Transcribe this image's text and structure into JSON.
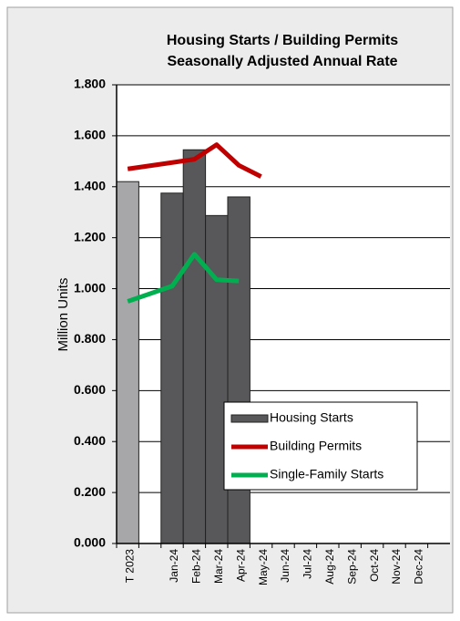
{
  "chart_data": {
    "type": "bar_line",
    "title": [
      "Housing Starts / Building Permits",
      "Seasonally Adjusted Annual Rate"
    ],
    "y_label": "Million Units",
    "categories": [
      "T 2023",
      null,
      "Jan-24",
      "Feb-24",
      "Mar-24",
      "Apr-24",
      "May-24",
      "Jun-24",
      "Jul-24",
      "Aug-24",
      "Sep-24",
      "Oct-24",
      "Nov-24",
      "Dec-24",
      null
    ],
    "series": [
      {
        "name": "Housing Starts",
        "type": "bar",
        "color": "#58585a",
        "point_colors": {
          "0": "#a7a7aa"
        },
        "values": [
          1.42,
          null,
          1.375,
          1.545,
          1.287,
          1.36,
          null,
          null,
          null,
          null,
          null,
          null,
          null,
          null,
          null
        ]
      },
      {
        "name": "Building Permits",
        "type": "line",
        "color": "#c00000",
        "values": [
          1.47,
          null,
          1.495,
          1.508,
          1.565,
          1.484,
          1.44,
          null,
          null,
          null,
          null,
          null,
          null,
          null,
          null
        ]
      },
      {
        "name": "Single-Family Starts",
        "type": "line",
        "color": "#00b050",
        "values": [
          0.95,
          null,
          1.01,
          1.135,
          1.035,
          1.03,
          null,
          null,
          null,
          null,
          null,
          null,
          null,
          null,
          null
        ]
      }
    ],
    "connect_gaps": true,
    "ylim": [
      0,
      1.8
    ],
    "yticks": [
      {
        "value": 0,
        "label": "0.000"
      },
      {
        "value": 0.2,
        "label": "0.200"
      },
      {
        "value": 0.4,
        "label": "0.400"
      },
      {
        "value": 0.6,
        "label": "0.600"
      },
      {
        "value": 0.8,
        "label": "0.800"
      },
      {
        "value": 1.0,
        "label": "1.000"
      },
      {
        "value": 1.2,
        "label": "1.200"
      },
      {
        "value": 1.4,
        "label": "1.400"
      },
      {
        "value": 1.6,
        "label": "1.600"
      },
      {
        "value": 1.8,
        "label": "1.800"
      }
    ],
    "grid": true,
    "legend": "lower right"
  }
}
